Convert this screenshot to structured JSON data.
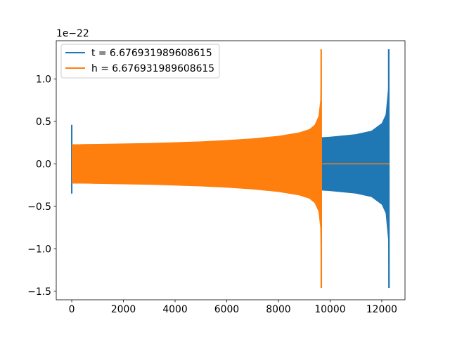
{
  "chart_data": {
    "type": "line",
    "offset_text": "1e−22",
    "xlim": [
      -600,
      12900
    ],
    "ylim": [
      -1.6,
      1.45
    ],
    "x_ticks": [
      {
        "value": 0,
        "label": "0"
      },
      {
        "value": 2000,
        "label": "2000"
      },
      {
        "value": 4000,
        "label": "4000"
      },
      {
        "value": 6000,
        "label": "6000"
      },
      {
        "value": 8000,
        "label": "8000"
      },
      {
        "value": 10000,
        "label": "10000"
      },
      {
        "value": 12000,
        "label": "12000"
      }
    ],
    "y_ticks": [
      {
        "value": -1.5,
        "label": "−1.5"
      },
      {
        "value": -1.0,
        "label": "−1.0"
      },
      {
        "value": -0.5,
        "label": "−0.5"
      },
      {
        "value": 0.0,
        "label": "0.0"
      },
      {
        "value": 0.5,
        "label": "0.5"
      },
      {
        "value": 1.0,
        "label": "1.0"
      }
    ],
    "legend_position": "upper-left",
    "series": [
      {
        "name": "t = 6.676931989608615",
        "color": "#1f77b4",
        "start_spike": {
          "x": 0,
          "max": 0.46,
          "min": -0.35
        },
        "envelope_x": [
          0,
          2000,
          4000,
          6000,
          8000,
          10000,
          11000,
          11600,
          12000,
          12150,
          12250,
          12270
        ],
        "envelope_amp": [
          0.23,
          0.235,
          0.245,
          0.26,
          0.28,
          0.32,
          0.35,
          0.39,
          0.48,
          0.58,
          0.9,
          1.35
        ],
        "final_x": 12280,
        "final_min": -1.46,
        "x_end": 12300
      },
      {
        "name": "h = 6.676931989608615",
        "color": "#ff7f0e",
        "envelope_x": [
          0,
          1000,
          2000,
          3000,
          4000,
          5000,
          6000,
          7000,
          8000,
          8800,
          9200,
          9400,
          9550,
          9620,
          9655
        ],
        "envelope_amp": [
          0.23,
          0.235,
          0.24,
          0.245,
          0.255,
          0.265,
          0.28,
          0.3,
          0.33,
          0.37,
          0.41,
          0.46,
          0.56,
          0.75,
          1.35
        ],
        "final_x": 9660,
        "final_min": -1.46,
        "zero_line_x": [
          9700,
          12300
        ]
      }
    ]
  }
}
